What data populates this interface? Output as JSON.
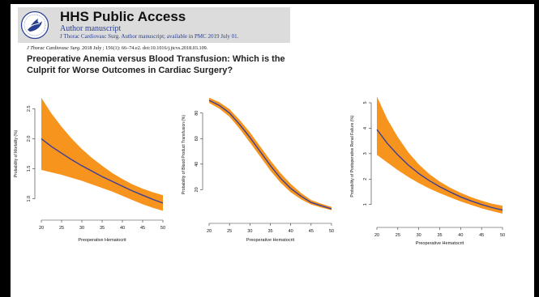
{
  "banner": {
    "title": "HHS Public Access",
    "subtitle": "Author manuscript",
    "journal_line": "J Thorac Cardiovasc Surg. Author manuscript; available in PMC 2019 July 01."
  },
  "citation": {
    "journal": "J Thorac Cardiovasc Surg.",
    "rest": " 2018 July ; 156(1): 66–74.e2. doi:10.1016/j.jtcvs.2018.03.109."
  },
  "article_title": "Preoperative Anemia versus Blood Transfusion: Which is the Culprit for Worse Outcomes in Cardiac Surgery?",
  "colors": {
    "band": "#f7941d",
    "line": "#3b3f98",
    "axis": "#333333"
  },
  "chart_data": [
    {
      "type": "area",
      "xlabel": "Preoperative Hematocrit",
      "ylabel": "Probability of Mortality (%)",
      "xlim": [
        20,
        50
      ],
      "ylim": [
        0.78,
        2.72
      ],
      "xticks": [
        20,
        25,
        30,
        35,
        40,
        45,
        50
      ],
      "yticks": [
        1.0,
        1.5,
        2.0,
        2.5
      ],
      "ytick_labels": [
        "1.0",
        "1.5",
        "2.0",
        "2.5"
      ],
      "grid": false,
      "x": [
        20,
        22.5,
        25,
        27.5,
        30,
        32.5,
        35,
        37.5,
        40,
        42.5,
        45,
        47.5,
        50
      ],
      "series": [
        {
          "values": [
            2.0,
            1.87,
            1.76,
            1.65,
            1.55,
            1.46,
            1.37,
            1.29,
            1.21,
            1.13,
            1.06,
            0.99,
            0.93
          ]
        }
      ],
      "upper": [
        2.68,
        2.42,
        2.2,
        2.0,
        1.83,
        1.68,
        1.55,
        1.43,
        1.33,
        1.24,
        1.17,
        1.11,
        1.06
      ],
      "lower": [
        1.48,
        1.44,
        1.4,
        1.35,
        1.3,
        1.24,
        1.18,
        1.12,
        1.05,
        0.98,
        0.91,
        0.85,
        0.8
      ]
    },
    {
      "type": "area",
      "xlabel": "Preoperative Hematocrit",
      "ylabel": "Probability of Blood Product Transfusion (%)",
      "xlim": [
        20,
        50
      ],
      "ylim": [
        0,
        95
      ],
      "xticks": [
        20,
        25,
        30,
        35,
        40,
        45,
        50
      ],
      "yticks": [
        20,
        40,
        60,
        80
      ],
      "ytick_labels": [
        "20",
        "40",
        "60",
        "80"
      ],
      "grid": false,
      "x": [
        20,
        22.5,
        25,
        27.5,
        30,
        32.5,
        35,
        37.5,
        40,
        42.5,
        45,
        47.5,
        50
      ],
      "series": [
        {
          "values": [
            90,
            86,
            80,
            71,
            61,
            50,
            39,
            29,
            21,
            15,
            10,
            7.5,
            5
          ]
        }
      ],
      "upper": [
        92,
        88.5,
        83,
        74.5,
        65,
        54,
        43,
        33,
        24.5,
        17.5,
        12,
        9,
        6.5
      ],
      "lower": [
        88,
        83.5,
        77,
        67.5,
        57,
        46,
        35,
        25.5,
        18,
        12.5,
        8.5,
        6,
        4
      ]
    },
    {
      "type": "area",
      "xlabel": "Preoperative Hematocrit",
      "ylabel": "Probability of Postoperative Renal Failure (%)",
      "xlim": [
        20,
        50
      ],
      "ylim": [
        0.45,
        5.35
      ],
      "xticks": [
        20,
        25,
        30,
        35,
        40,
        45,
        50
      ],
      "yticks": [
        1,
        2,
        3,
        4,
        5
      ],
      "ytick_labels": [
        "1",
        "2",
        "3",
        "4",
        "5"
      ],
      "grid": false,
      "x": [
        20,
        22.5,
        25,
        27.5,
        30,
        32.5,
        35,
        37.5,
        40,
        42.5,
        45,
        47.5,
        50
      ],
      "series": [
        {
          "values": [
            3.95,
            3.4,
            2.95,
            2.55,
            2.22,
            1.94,
            1.7,
            1.49,
            1.3,
            1.14,
            1.0,
            0.88,
            0.78
          ]
        }
      ],
      "upper": [
        5.25,
        4.35,
        3.65,
        3.05,
        2.58,
        2.2,
        1.9,
        1.66,
        1.46,
        1.29,
        1.15,
        1.03,
        0.95
      ],
      "lower": [
        2.95,
        2.65,
        2.35,
        2.08,
        1.84,
        1.63,
        1.45,
        1.28,
        1.12,
        0.98,
        0.85,
        0.74,
        0.64
      ]
    }
  ]
}
